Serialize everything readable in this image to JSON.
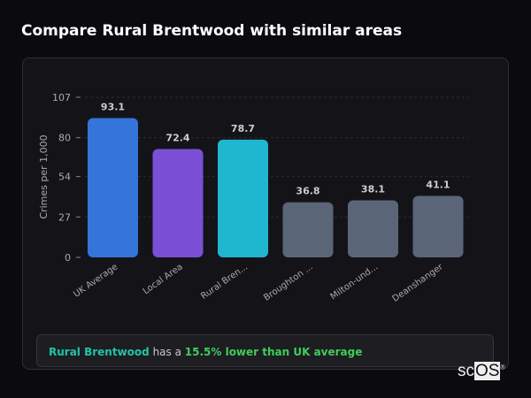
{
  "title": "Compare Rural Brentwood with similar areas",
  "chart_data": {
    "type": "bar",
    "ylabel": "Crimes per 1,000",
    "ylim": [
      0,
      107
    ],
    "yticks": [
      0,
      27,
      54,
      80,
      107
    ],
    "grid": "horizontal dashed",
    "categories": [
      "UK Average",
      "Local Area",
      "Rural Bren...",
      "Broughton ...",
      "Milton-und...",
      "Deanshanger"
    ],
    "values": [
      93.1,
      72.4,
      78.7,
      36.8,
      38.1,
      41.1
    ],
    "value_labels": [
      "93.1",
      "72.4",
      "78.7",
      "36.8",
      "38.1",
      "41.1"
    ],
    "colors": [
      "#3574d9",
      "#7b4fd6",
      "#1fb6cf",
      "#5a6578",
      "#5a6578",
      "#5a6578"
    ]
  },
  "summary": {
    "area": "Rural Brentwood",
    "middle": " has a ",
    "comparison": "15.5% lower than UK average"
  },
  "logo": {
    "text_a": "sc",
    "text_b": "OS",
    "mark": "®"
  }
}
